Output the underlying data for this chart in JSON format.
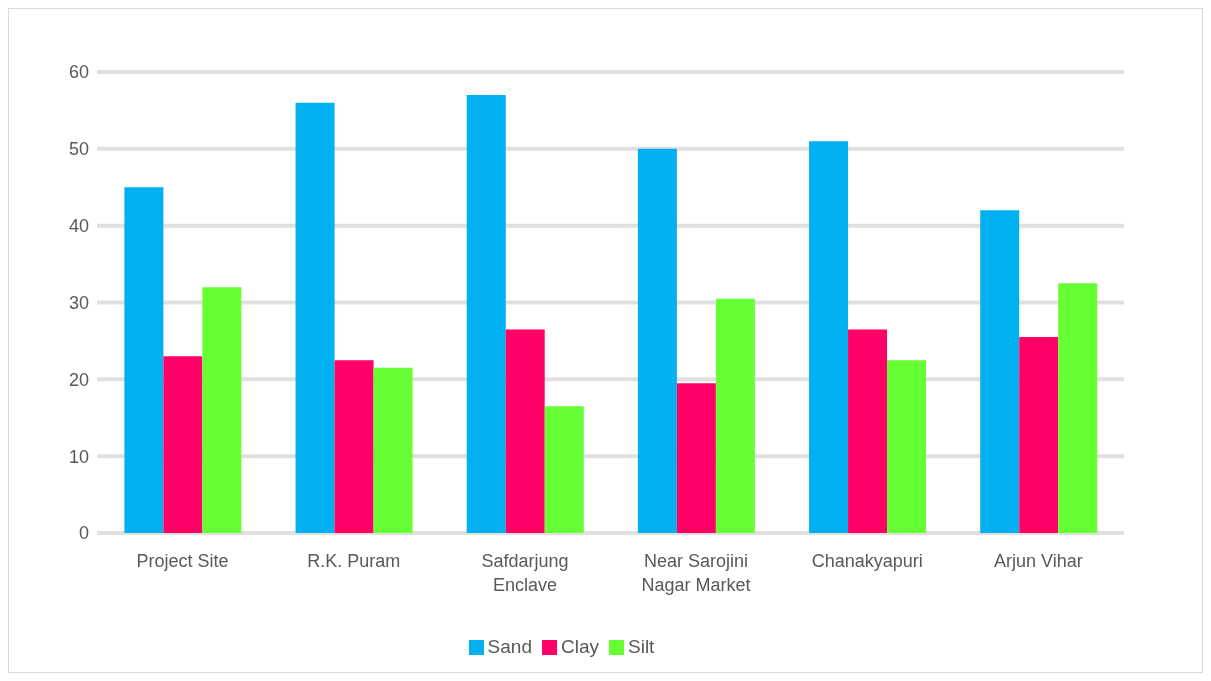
{
  "chart_data": {
    "type": "bar",
    "categories": [
      "Project Site",
      "R.K. Puram",
      "Safdarjung Enclave",
      "Near Sarojini Nagar Market",
      "Chanakyapuri",
      "Arjun Vihar"
    ],
    "series": [
      {
        "name": "Sand",
        "color": "#00b0f0",
        "values": [
          45,
          56,
          57,
          50,
          51,
          42
        ]
      },
      {
        "name": "Clay",
        "color": "#ff0066",
        "values": [
          23,
          22.5,
          26.5,
          19.5,
          26.5,
          25.5
        ]
      },
      {
        "name": "Silt",
        "color": "#66ff33",
        "values": [
          32,
          21.5,
          16.5,
          30.5,
          22.5,
          32.5
        ]
      }
    ],
    "ylim": [
      0,
      60
    ],
    "yticks": [
      0,
      10,
      20,
      30,
      40,
      50,
      60
    ],
    "grid": "y",
    "legend": "bottom"
  }
}
